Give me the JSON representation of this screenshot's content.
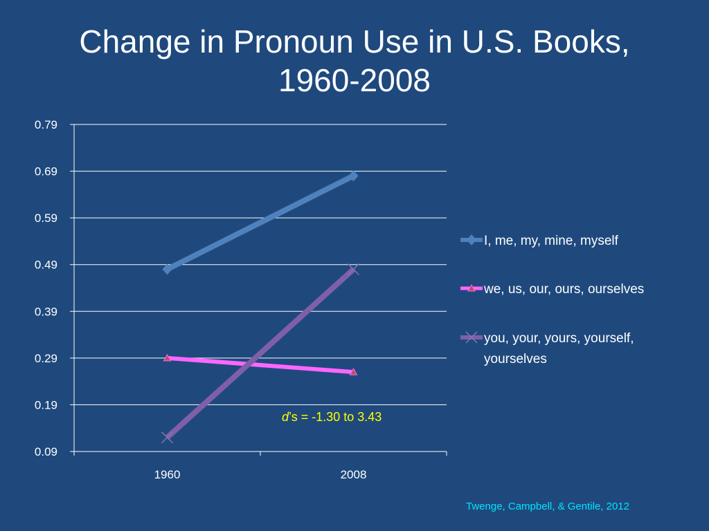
{
  "chart_data": {
    "type": "line",
    "title_lines": [
      "Change in Pronoun Use in U.S. Books,",
      "1960-2008"
    ],
    "categories": [
      "1960",
      "2008"
    ],
    "ylim": [
      0.09,
      0.79
    ],
    "yticks": [
      "0.79",
      "0.69",
      "0.59",
      "0.49",
      "0.39",
      "0.29",
      "0.19",
      "0.09"
    ],
    "grid": true,
    "legend_position": "right",
    "series": [
      {
        "name": "I, me, my, mine, myself",
        "values": [
          0.48,
          0.68
        ],
        "color": "#4f81bd",
        "marker": "diamond"
      },
      {
        "name": "we, us, our, ours, ourselves",
        "values": [
          0.29,
          0.26
        ],
        "color": "#ff66ff",
        "marker": "triangle"
      },
      {
        "name_lines": [
          "you, your, yours, yourself,",
          "yourselves"
        ],
        "values": [
          0.12,
          0.48
        ],
        "color": "#7f5fa8",
        "marker": "x"
      }
    ],
    "annotation": {
      "italic": "d",
      "rest": "’s = -1.30 to 3.43"
    }
  },
  "citation": "Twenge, Campbell, & Gentile, 2012"
}
